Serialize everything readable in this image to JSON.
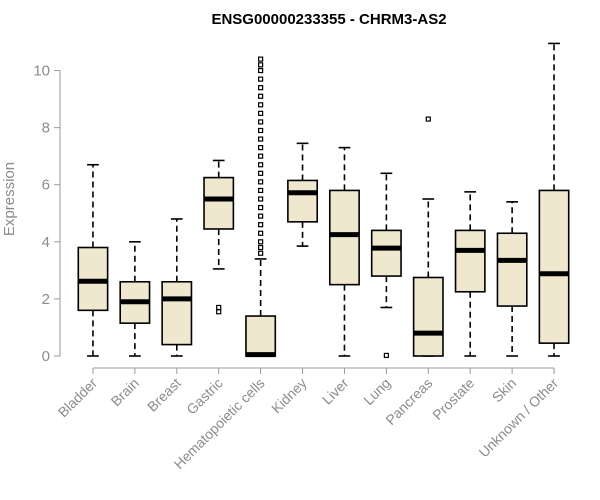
{
  "chart_data": {
    "type": "boxplot",
    "title": "ENSG00000233355 - CHRM3-AS2",
    "ylabel": "Expression",
    "xlabel": "",
    "ylim": [
      0,
      11
    ],
    "yticks": [
      0,
      2,
      4,
      6,
      8,
      10
    ],
    "grid": false,
    "box_color": "#efe8cf",
    "categories": [
      "Bladder",
      "Brain",
      "Breast",
      "Gastric",
      "Hematopoietic cells",
      "Kidney",
      "Liver",
      "Lung",
      "Pancreas",
      "Prostate",
      "Skin",
      "Unknown / Other"
    ],
    "boxes": [
      {
        "min": 0,
        "q1": 1.6,
        "median": 2.62,
        "q3": 3.8,
        "max": 6.7,
        "outliers": []
      },
      {
        "min": 0,
        "q1": 1.15,
        "median": 1.9,
        "q3": 2.6,
        "max": 4.0,
        "outliers": []
      },
      {
        "min": 0,
        "q1": 0.4,
        "median": 2.0,
        "q3": 2.6,
        "max": 4.8,
        "outliers": []
      },
      {
        "min": 3.05,
        "q1": 4.45,
        "median": 5.5,
        "q3": 6.25,
        "max": 6.85,
        "outliers": [
          1.55,
          1.7
        ]
      },
      {
        "min": 0,
        "q1": 0,
        "median": 0.05,
        "q3": 1.4,
        "max": 3.4,
        "outliers": [
          3.6,
          3.8,
          4.0,
          4.3,
          4.6,
          4.9,
          5.2,
          5.5,
          5.8,
          6.1,
          6.4,
          6.7,
          7.0,
          7.3,
          7.6,
          7.9,
          8.2,
          8.5,
          8.8,
          9.1,
          9.4,
          9.7,
          10.0,
          10.2,
          10.4
        ]
      },
      {
        "min": 3.85,
        "q1": 4.7,
        "median": 5.72,
        "q3": 6.15,
        "max": 7.45,
        "outliers": []
      },
      {
        "min": 0,
        "q1": 2.5,
        "median": 4.25,
        "q3": 5.8,
        "max": 7.3,
        "outliers": []
      },
      {
        "min": 1.7,
        "q1": 2.8,
        "median": 3.78,
        "q3": 4.4,
        "max": 6.4,
        "outliers": [
          0.02
        ]
      },
      {
        "min": 0,
        "q1": 0,
        "median": 0.8,
        "q3": 2.75,
        "max": 5.5,
        "outliers": [
          8.3
        ]
      },
      {
        "min": 0,
        "q1": 2.25,
        "median": 3.7,
        "q3": 4.4,
        "max": 5.75,
        "outliers": []
      },
      {
        "min": 0,
        "q1": 1.75,
        "median": 3.35,
        "q3": 4.3,
        "max": 5.4,
        "outliers": []
      },
      {
        "min": 0,
        "q1": 0.45,
        "median": 2.88,
        "q3": 5.8,
        "max": 10.95,
        "outliers": []
      }
    ]
  }
}
